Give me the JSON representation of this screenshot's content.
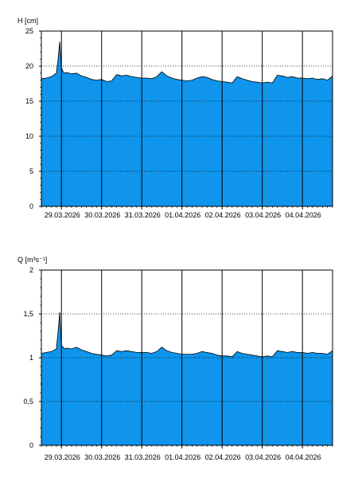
{
  "chart_data": [
    {
      "type": "area",
      "ylabel": "H [cm]",
      "ylim": [
        0,
        25
      ],
      "yticks": [
        0,
        5,
        10,
        15,
        20,
        25
      ],
      "ytick_labels": [
        "0",
        "5",
        "10",
        "15",
        "20",
        "25"
      ],
      "xlim": [
        "28.03.2026 12:00",
        "04.04.2026 18:00"
      ],
      "xtick_labels": [
        "29.03.2026",
        "30.03.2026",
        "31.03.2026",
        "01.04.2026",
        "02.04.2026",
        "03.04.2026",
        "04.04.2026"
      ],
      "grid": "horizontal dotted, vertical solid",
      "fill_color": "#0f95eb",
      "line_color": "#000000",
      "series": [
        {
          "x": [
            "28.03.2026 12:00",
            "28.03.2026 15:00",
            "28.03.2026 18:00",
            "28.03.2026 21:00",
            "28.03.2026 22:00",
            "28.03.2026 23:00",
            "29.03.2026 00:00",
            "29.03.2026 01:00",
            "29.03.2026 02:00",
            "29.03.2026 03:00",
            "29.03.2026 06:00",
            "29.03.2026 09:00",
            "29.03.2026 12:00",
            "29.03.2026 15:00",
            "29.03.2026 18:00",
            "29.03.2026 21:00",
            "30.03.2026 00:00",
            "30.03.2026 03:00",
            "30.03.2026 06:00",
            "30.03.2026 09:00",
            "30.03.2026 12:00",
            "30.03.2026 15:00",
            "30.03.2026 18:00",
            "30.03.2026 21:00",
            "31.03.2026 00:00",
            "31.03.2026 03:00",
            "31.03.2026 06:00",
            "31.03.2026 09:00",
            "31.03.2026 12:00",
            "31.03.2026 15:00",
            "31.03.2026 18:00",
            "31.03.2026 21:00",
            "01.04.2026 00:00",
            "01.04.2026 03:00",
            "01.04.2026 06:00",
            "01.04.2026 09:00",
            "01.04.2026 12:00",
            "01.04.2026 15:00",
            "01.04.2026 18:00",
            "01.04.2026 21:00",
            "02.04.2026 00:00",
            "02.04.2026 03:00",
            "02.04.2026 06:00",
            "02.04.2026 09:00",
            "02.04.2026 12:00",
            "02.04.2026 15:00",
            "02.04.2026 18:00",
            "02.04.2026 21:00",
            "03.04.2026 00:00",
            "03.04.2026 03:00",
            "03.04.2026 06:00",
            "03.04.2026 09:00",
            "03.04.2026 12:00",
            "03.04.2026 15:00",
            "03.04.2026 18:00",
            "03.04.2026 21:00",
            "04.04.2026 00:00",
            "04.04.2026 03:00",
            "04.04.2026 06:00",
            "04.04.2026 09:00",
            "04.04.2026 12:00",
            "04.04.2026 15:00",
            "04.04.2026 18:00"
          ],
          "values": [
            18.2,
            18.3,
            18.5,
            19.0,
            21.0,
            23.5,
            19.8,
            19.2,
            19.0,
            19.1,
            18.9,
            19.0,
            18.6,
            18.4,
            18.1,
            18.0,
            18.1,
            17.8,
            17.9,
            18.8,
            18.6,
            18.7,
            18.5,
            18.4,
            18.3,
            18.3,
            18.2,
            18.5,
            19.2,
            18.6,
            18.3,
            18.1,
            18.0,
            17.9,
            18.0,
            18.3,
            18.5,
            18.4,
            18.1,
            17.9,
            17.8,
            17.7,
            17.6,
            18.5,
            18.2,
            18.0,
            17.8,
            17.7,
            17.6,
            17.7,
            17.6,
            18.7,
            18.6,
            18.4,
            18.5,
            18.3,
            18.3,
            18.2,
            18.3,
            18.1,
            18.2,
            18.0,
            18.6
          ]
        }
      ]
    },
    {
      "type": "area",
      "ylabel": "Q [m³s⁻¹]",
      "ylim": [
        0,
        2
      ],
      "yticks": [
        0,
        0.5,
        1,
        1.5,
        2
      ],
      "ytick_labels": [
        "0",
        "0,5",
        "1",
        "1,5",
        "2"
      ],
      "xlim": [
        "28.03.2026 12:00",
        "04.04.2026 18:00"
      ],
      "xtick_labels": [
        "29.03.2026",
        "30.03.2026",
        "31.03.2026",
        "01.04.2026",
        "02.04.2026",
        "03.04.2026",
        "04.04.2026"
      ],
      "grid": "horizontal dotted, vertical solid",
      "fill_color": "#0f95eb",
      "line_color": "#000000",
      "series": [
        {
          "x": [
            "28.03.2026 12:00",
            "28.03.2026 15:00",
            "28.03.2026 18:00",
            "28.03.2026 21:00",
            "28.03.2026 22:00",
            "28.03.2026 23:00",
            "29.03.2026 00:00",
            "29.03.2026 01:00",
            "29.03.2026 02:00",
            "29.03.2026 03:00",
            "29.03.2026 06:00",
            "29.03.2026 09:00",
            "29.03.2026 12:00",
            "29.03.2026 15:00",
            "29.03.2026 18:00",
            "29.03.2026 21:00",
            "30.03.2026 00:00",
            "30.03.2026 03:00",
            "30.03.2026 06:00",
            "30.03.2026 09:00",
            "30.03.2026 12:00",
            "30.03.2026 15:00",
            "30.03.2026 18:00",
            "30.03.2026 21:00",
            "31.03.2026 00:00",
            "31.03.2026 03:00",
            "31.03.2026 06:00",
            "31.03.2026 09:00",
            "31.03.2026 12:00",
            "31.03.2026 15:00",
            "31.03.2026 18:00",
            "31.03.2026 21:00",
            "01.04.2026 00:00",
            "01.04.2026 03:00",
            "01.04.2026 06:00",
            "01.04.2026 09:00",
            "01.04.2026 12:00",
            "01.04.2026 15:00",
            "01.04.2026 18:00",
            "01.04.2026 21:00",
            "02.04.2026 00:00",
            "02.04.2026 03:00",
            "02.04.2026 06:00",
            "02.04.2026 09:00",
            "02.04.2026 12:00",
            "02.04.2026 15:00",
            "02.04.2026 18:00",
            "02.04.2026 21:00",
            "03.04.2026 00:00",
            "03.04.2026 03:00",
            "03.04.2026 06:00",
            "03.04.2026 09:00",
            "03.04.2026 12:00",
            "03.04.2026 15:00",
            "03.04.2026 18:00",
            "03.04.2026 21:00",
            "04.04.2026 00:00",
            "04.04.2026 03:00",
            "04.04.2026 06:00",
            "04.04.2026 09:00",
            "04.04.2026 12:00",
            "04.04.2026 15:00",
            "04.04.2026 18:00"
          ],
          "values": [
            1.05,
            1.06,
            1.07,
            1.1,
            1.3,
            1.52,
            1.14,
            1.12,
            1.1,
            1.11,
            1.1,
            1.12,
            1.09,
            1.07,
            1.05,
            1.04,
            1.03,
            1.02,
            1.03,
            1.08,
            1.07,
            1.08,
            1.07,
            1.06,
            1.06,
            1.06,
            1.05,
            1.07,
            1.12,
            1.08,
            1.06,
            1.05,
            1.04,
            1.04,
            1.04,
            1.05,
            1.07,
            1.06,
            1.05,
            1.03,
            1.02,
            1.02,
            1.01,
            1.07,
            1.05,
            1.04,
            1.03,
            1.02,
            1.01,
            1.02,
            1.01,
            1.08,
            1.07,
            1.06,
            1.07,
            1.06,
            1.06,
            1.05,
            1.06,
            1.05,
            1.05,
            1.04,
            1.08
          ]
        }
      ]
    }
  ]
}
